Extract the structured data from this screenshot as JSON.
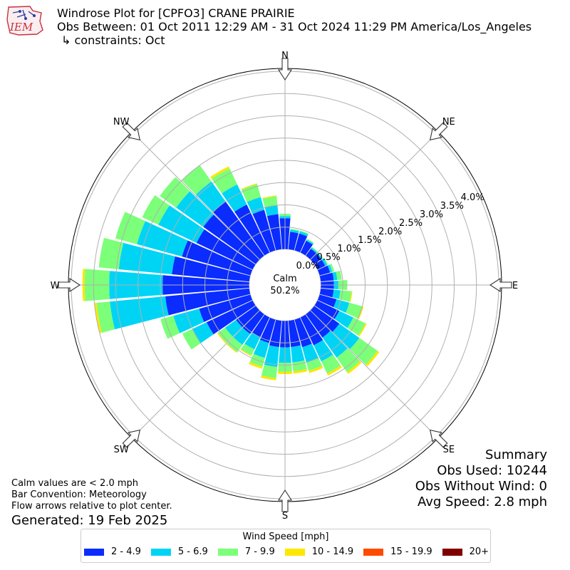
{
  "logo": {
    "text": "IEM"
  },
  "header": {
    "title": "Windrose Plot for [CPFO3] CRANE PRAIRIE",
    "obs_between": "Obs Between: 01 Oct 2011 12:29 AM - 31 Oct 2024 11:29 PM America/Los_Angeles",
    "constraints": "↳ constraints: Oct"
  },
  "notes": {
    "calm_note": "Calm values are < 2.0 mph",
    "bar_convention": "Bar Convention: Meteorology",
    "flow_arrows": "Flow arrows relative to plot center.",
    "generated": "Generated: 19 Feb 2025"
  },
  "summary": {
    "title": "Summary",
    "obs_used": "Obs Used: 10244",
    "obs_without_wind": "Obs Without Wind: 0",
    "avg_speed": "Avg Speed: 2.8 mph"
  },
  "chart_data": {
    "type": "windrose",
    "calm_label": "Calm",
    "calm_value": "50.2%",
    "directions": [
      "N",
      "NE",
      "E",
      "SE",
      "S",
      "SW",
      "W",
      "NW"
    ],
    "radial_ticks": [
      "0.0%",
      "0.5%",
      "1.0%",
      "1.5%",
      "2.0%",
      "2.5%",
      "3.0%",
      "3.5%",
      "4.0%"
    ],
    "radial_max": 4.0,
    "legend_title": "Wind Speed [mph]",
    "series": [
      {
        "name": "2 - 4.9",
        "color": "#0a2cff"
      },
      {
        "name": "5 - 6.9",
        "color": "#00d4f5"
      },
      {
        "name": "7 - 9.9",
        "color": "#7cff79"
      },
      {
        "name": "10 - 14.9",
        "color": "#ffe600"
      },
      {
        "name": "15 - 19.9",
        "color": "#ff4a00"
      },
      {
        "name": "20+",
        "color": "#800000"
      }
    ],
    "bins_deg": [
      0,
      10,
      20,
      30,
      40,
      50,
      60,
      70,
      80,
      90,
      100,
      110,
      120,
      130,
      140,
      150,
      160,
      170,
      180,
      190,
      200,
      210,
      220,
      230,
      240,
      250,
      260,
      270,
      280,
      290,
      300,
      310,
      320,
      330,
      340,
      350
    ],
    "values": [
      [
        0.7,
        0.05,
        0.05,
        0,
        0,
        0
      ],
      [
        0.4,
        0.05,
        0.02,
        0,
        0,
        0
      ],
      [
        0.4,
        0.05,
        0.02,
        0,
        0,
        0
      ],
      [
        0.3,
        0.03,
        0.02,
        0,
        0,
        0
      ],
      [
        0.2,
        0.03,
        0.02,
        0,
        0,
        0
      ],
      [
        0.2,
        0.03,
        0.01,
        0,
        0,
        0
      ],
      [
        0.2,
        0.05,
        0.02,
        0,
        0,
        0
      ],
      [
        0.25,
        0.05,
        0.05,
        0,
        0,
        0
      ],
      [
        0.3,
        0.08,
        0.1,
        0,
        0,
        0
      ],
      [
        0.3,
        0.1,
        0.2,
        0,
        0,
        0
      ],
      [
        0.3,
        0.15,
        0.25,
        0.02,
        0,
        0
      ],
      [
        0.4,
        0.3,
        0.3,
        0.03,
        0,
        0
      ],
      [
        0.55,
        0.35,
        0.3,
        0.03,
        0,
        0
      ],
      [
        0.7,
        0.55,
        0.5,
        0.05,
        0,
        0
      ],
      [
        0.65,
        0.55,
        0.4,
        0.05,
        0,
        0
      ],
      [
        0.7,
        0.4,
        0.3,
        0.05,
        0,
        0
      ],
      [
        0.65,
        0.35,
        0.2,
        0.05,
        0,
        0
      ],
      [
        0.6,
        0.35,
        0.2,
        0.05,
        0,
        0
      ],
      [
        0.6,
        0.35,
        0.2,
        0.05,
        0,
        0
      ],
      [
        0.6,
        0.45,
        0.25,
        0.05,
        0,
        0
      ],
      [
        0.55,
        0.35,
        0.2,
        0.05,
        0,
        0
      ],
      [
        0.5,
        0.3,
        0.15,
        0.02,
        0,
        0
      ],
      [
        0.55,
        0.3,
        0.2,
        0.02,
        0,
        0
      ],
      [
        0.55,
        0.3,
        0.2,
        0.02,
        0,
        0
      ],
      [
        1.15,
        0.35,
        0.25,
        0,
        0,
        0
      ],
      [
        1.2,
        0.6,
        0.3,
        0,
        0,
        0
      ],
      [
        1.9,
        1.25,
        0.3,
        0.05,
        0,
        0
      ],
      [
        1.95,
        1.2,
        0.55,
        0.05,
        0,
        0
      ],
      [
        1.75,
        1.2,
        0.45,
        0,
        0,
        0
      ],
      [
        1.6,
        1.05,
        0.5,
        0,
        0,
        0
      ],
      [
        1.4,
        0.95,
        0.4,
        0,
        0,
        0
      ],
      [
        1.45,
        0.75,
        0.45,
        0,
        0,
        0
      ],
      [
        1.5,
        0.55,
        0.45,
        0,
        0,
        0
      ],
      [
        1.2,
        0.5,
        0.4,
        0.05,
        0,
        0
      ],
      [
        0.95,
        0.3,
        0.3,
        0.02,
        0,
        0
      ],
      [
        0.8,
        0.2,
        0.2,
        0.02,
        0,
        0
      ]
    ]
  }
}
